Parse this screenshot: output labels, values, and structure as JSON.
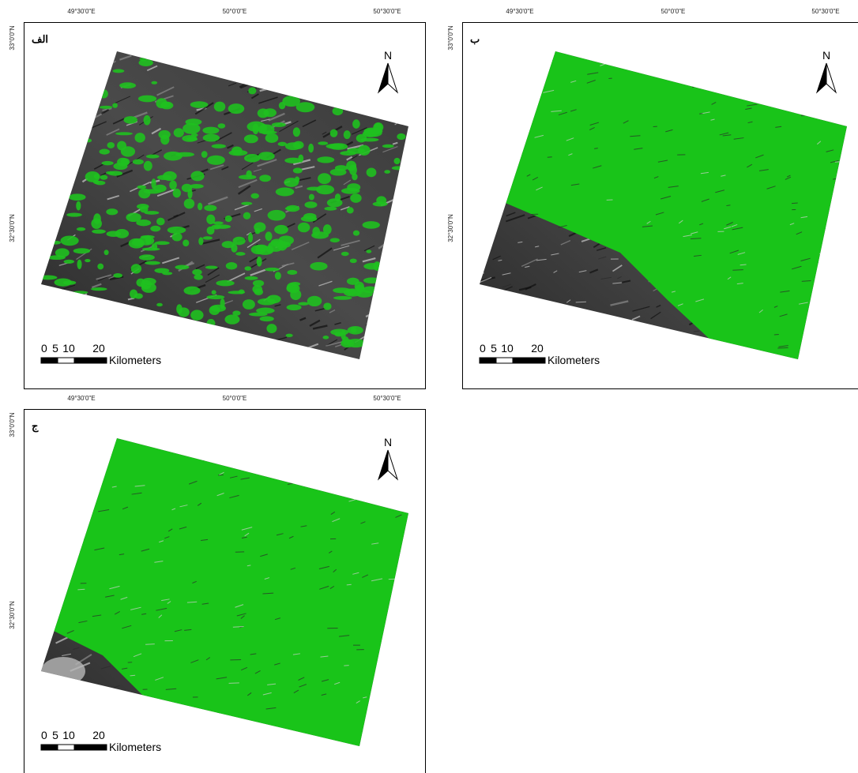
{
  "panels": [
    {
      "label": "الف",
      "north": "N",
      "lon_ticks": [
        "49°30'0\"E",
        "50°0'0\"E",
        "50°30'0\"E"
      ],
      "lat_ticks": [
        "33°0'0\"N",
        "32°30'0\"N"
      ],
      "scale": {
        "ticks": [
          "0",
          "5",
          "10",
          "20"
        ],
        "unit": "Kilometers"
      }
    },
    {
      "label": "ب",
      "north": "N",
      "lon_ticks": [
        "49°30'0\"E",
        "50°0'0\"E",
        "50°30'0\"E"
      ],
      "lat_ticks": [
        "33°0'0\"N",
        "32°30'0\"N"
      ],
      "scale": {
        "ticks": [
          "0",
          "5",
          "10",
          "20"
        ],
        "unit": "Kilometers"
      }
    },
    {
      "label": "ج",
      "north": "N",
      "lon_ticks": [
        "49°30'0\"E",
        "50°0'0\"E",
        "50°30'0\"E"
      ],
      "lat_ticks": [
        "33°0'0\"N",
        "32°30'0\"N"
      ],
      "scale": {
        "ticks": [
          "0",
          "5",
          "10",
          "20"
        ],
        "unit": "Kilometers"
      }
    }
  ]
}
